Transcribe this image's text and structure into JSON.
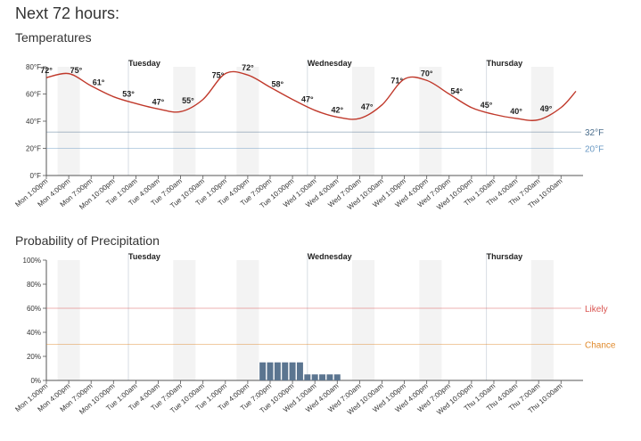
{
  "page": {
    "title": "Next 72 hours:"
  },
  "x_labels": [
    "Mon 1:00pm",
    "Mon 4:00pm",
    "Mon 7:00pm",
    "Mon 10:00pm",
    "Tue 1:00am",
    "Tue 4:00am",
    "Tue 7:00am",
    "Tue 10:00am",
    "Tue 1:00pm",
    "Tue 4:00pm",
    "Tue 7:00pm",
    "Tue 10:00pm",
    "Wed 1:00am",
    "Wed 4:00am",
    "Wed 7:00am",
    "Wed 10:00am",
    "Wed 1:00pm",
    "Wed 4:00pm",
    "Wed 7:00pm",
    "Wed 10:00pm",
    "Thu 1:00am",
    "Thu 4:00am",
    "Thu 7:00am",
    "Thu 10:00am"
  ],
  "day_labels": [
    {
      "label": "Tuesday",
      "x_hours": 11
    },
    {
      "label": "Wednesday",
      "x_hours": 35
    },
    {
      "label": "Thursday",
      "x_hours": 59
    }
  ],
  "chart_data": [
    {
      "type": "line",
      "title": "Temperatures",
      "x_unit": "hours from Mon 1:00pm",
      "ylim": [
        0,
        80
      ],
      "yticks": [
        "0°F",
        "20°F",
        "40°F",
        "60°F",
        "80°F"
      ],
      "series": [
        {
          "x": [
            0,
            3,
            6,
            9,
            12,
            15,
            18,
            21,
            24,
            27,
            30,
            33,
            36,
            39,
            42,
            45,
            48,
            51,
            54,
            57,
            60,
            63,
            66,
            69,
            71
          ],
          "values": [
            72,
            75,
            66,
            58,
            53,
            49,
            47,
            56,
            75,
            74,
            65,
            56,
            48,
            43,
            42,
            52,
            71,
            70,
            60,
            50,
            45,
            42,
            41,
            50,
            62
          ]
        }
      ],
      "value_labels": [
        {
          "x": 0,
          "label": "72°"
        },
        {
          "x": 4,
          "label": "75°"
        },
        {
          "x": 7,
          "label": "61°"
        },
        {
          "x": 11,
          "label": "53°"
        },
        {
          "x": 15,
          "label": "47°"
        },
        {
          "x": 19,
          "label": "55°"
        },
        {
          "x": 23,
          "label": "75°"
        },
        {
          "x": 27,
          "label": "72°"
        },
        {
          "x": 31,
          "label": "58°"
        },
        {
          "x": 35,
          "label": "47°"
        },
        {
          "x": 39,
          "label": "42°"
        },
        {
          "x": 43,
          "label": "47°"
        },
        {
          "x": 47,
          "label": "71°"
        },
        {
          "x": 51,
          "label": "70°"
        },
        {
          "x": 55,
          "label": "54°"
        },
        {
          "x": 59,
          "label": "45°"
        },
        {
          "x": 63,
          "label": "40°"
        },
        {
          "x": 67,
          "label": "49°"
        }
      ],
      "reference_lines": [
        {
          "value": 32,
          "label": "32°F",
          "color": "#4a6d8c"
        },
        {
          "value": 20,
          "label": "20°F",
          "color": "#6b9ac4"
        }
      ],
      "line_color": "#c0392b",
      "grid": true
    },
    {
      "type": "bar",
      "title": "Probability of Precipitation",
      "x_unit": "hours from Mon 1:00pm",
      "ylim": [
        0,
        100
      ],
      "yticks": [
        "0%",
        "20%",
        "40%",
        "60%",
        "80%",
        "100%"
      ],
      "bars": [
        {
          "x": 29,
          "value": 15
        },
        {
          "x": 30,
          "value": 15
        },
        {
          "x": 31,
          "value": 15
        },
        {
          "x": 32,
          "value": 15
        },
        {
          "x": 33,
          "value": 15
        },
        {
          "x": 34,
          "value": 15
        },
        {
          "x": 35,
          "value": 5
        },
        {
          "x": 36,
          "value": 5
        },
        {
          "x": 37,
          "value": 5
        },
        {
          "x": 38,
          "value": 5
        },
        {
          "x": 39,
          "value": 5
        }
      ],
      "reference_lines": [
        {
          "value": 60,
          "label": "Likely",
          "color": "#d9534f"
        },
        {
          "value": 30,
          "label": "Chance",
          "color": "#e08a2c"
        }
      ],
      "bar_color": "#5b7590",
      "grid": true
    }
  ],
  "colors": {
    "night_band": "#f3f3f3",
    "grid": "#d8dde3",
    "axis": "#555555"
  }
}
